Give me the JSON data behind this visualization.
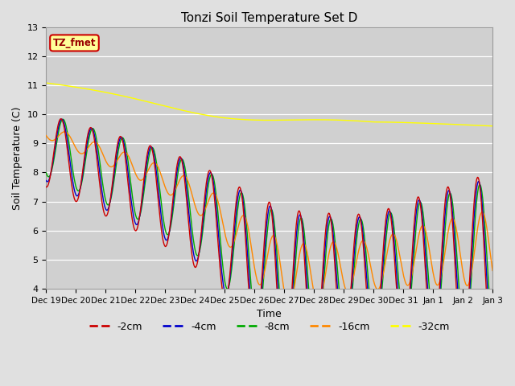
{
  "title": "Tonzi Soil Temperature Set D",
  "xlabel": "Time",
  "ylabel": "Soil Temperature (C)",
  "ylim": [
    4.0,
    13.0
  ],
  "yticks": [
    4.0,
    5.0,
    6.0,
    7.0,
    8.0,
    9.0,
    10.0,
    11.0,
    12.0,
    13.0
  ],
  "colors": {
    "-2cm": "#cc0000",
    "-4cm": "#0000cc",
    "-8cm": "#00aa00",
    "-16cm": "#ff8800",
    "-32cm": "#ffff00"
  },
  "bg_color": "#e0e0e0",
  "plot_bg_color": "#d0d0d0",
  "n_points": 720,
  "total_days": 15
}
